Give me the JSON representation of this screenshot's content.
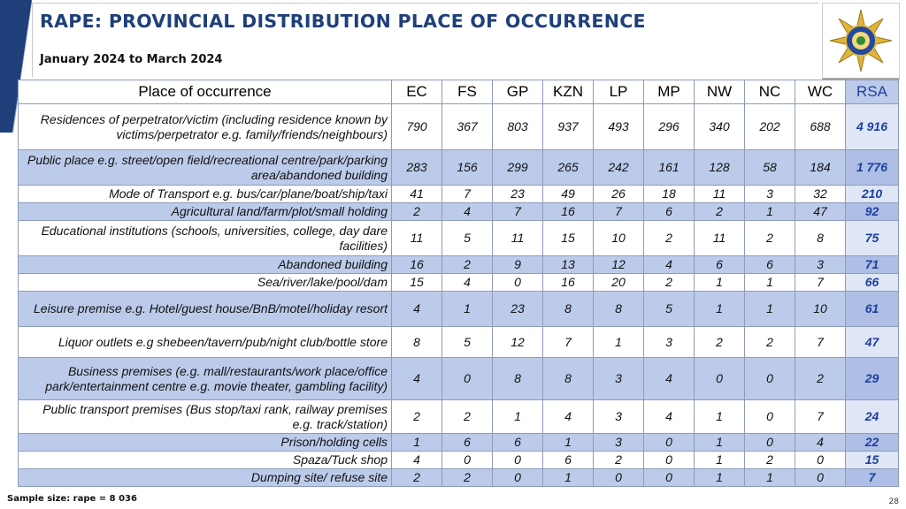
{
  "header": {
    "title": "RAPE: PROVINCIAL DISTRIBUTION PLACE OF OCCURRENCE",
    "subtitle": "January 2024 to March 2024"
  },
  "colors": {
    "accent": "#1f3f7a",
    "row_band": "#bccbea",
    "rsa_text": "#1f3fa0"
  },
  "logo": {
    "icon": "saps-star-emblem-icon"
  },
  "table": {
    "columns": [
      "Place of occurrence",
      "EC",
      "FS",
      "GP",
      "KZN",
      "LP",
      "MP",
      "NW",
      "NC",
      "WC",
      "RSA"
    ],
    "rows": [
      {
        "place": "Residences of perpetrator/victim (including residence known by victims/perpetrator e.g. family/friends/neighbours)",
        "values": [
          "790",
          "367",
          "803",
          "937",
          "493",
          "296",
          "340",
          "202",
          "688",
          "4 916"
        ]
      },
      {
        "place": "Public place e.g. street/open field/recreational centre/park/parking area/abandoned building",
        "values": [
          "283",
          "156",
          "299",
          "265",
          "242",
          "161",
          "128",
          "58",
          "184",
          "1 776"
        ]
      },
      {
        "place": "Mode of Transport e.g. bus/car/plane/boat/ship/taxi",
        "values": [
          "41",
          "7",
          "23",
          "49",
          "26",
          "18",
          "11",
          "3",
          "32",
          "210"
        ]
      },
      {
        "place": "Agricultural land/farm/plot/small holding",
        "values": [
          "2",
          "4",
          "7",
          "16",
          "7",
          "6",
          "2",
          "1",
          "47",
          "92"
        ]
      },
      {
        "place": "Educational institutions (schools, universities, college, day dare facilities)",
        "values": [
          "11",
          "5",
          "11",
          "15",
          "10",
          "2",
          "11",
          "2",
          "8",
          "75"
        ]
      },
      {
        "place": "Abandoned building",
        "values": [
          "16",
          "2",
          "9",
          "13",
          "12",
          "4",
          "6",
          "6",
          "3",
          "71"
        ]
      },
      {
        "place": "Sea/river/lake/pool/dam",
        "values": [
          "15",
          "4",
          "0",
          "16",
          "20",
          "2",
          "1",
          "1",
          "7",
          "66"
        ]
      },
      {
        "place": "Leisure premise e.g. Hotel/guest house/BnB/motel/holiday resort",
        "values": [
          "4",
          "1",
          "23",
          "8",
          "8",
          "5",
          "1",
          "1",
          "10",
          "61"
        ]
      },
      {
        "place": "Liquor outlets  e.g shebeen/tavern/pub/night club/bottle store",
        "values": [
          "8",
          "5",
          "12",
          "7",
          "1",
          "3",
          "2",
          "2",
          "7",
          "47"
        ]
      },
      {
        "place": "Business premises (e.g. mall/restaurants/work place/office park/entertainment centre e.g. movie theater, gambling facility)",
        "values": [
          "4",
          "0",
          "8",
          "8",
          "3",
          "4",
          "0",
          "0",
          "2",
          "29"
        ]
      },
      {
        "place": "Public transport premises (Bus stop/taxi rank, railway premises e.g. track/station)",
        "values": [
          "2",
          "2",
          "1",
          "4",
          "3",
          "4",
          "1",
          "0",
          "7",
          "24"
        ]
      },
      {
        "place": "Prison/holding cells",
        "values": [
          "1",
          "6",
          "6",
          "1",
          "3",
          "0",
          "1",
          "0",
          "4",
          "22"
        ]
      },
      {
        "place": "Spaza/Tuck shop",
        "values": [
          "4",
          "0",
          "0",
          "6",
          "2",
          "0",
          "1",
          "2",
          "0",
          "15"
        ]
      },
      {
        "place": "Dumping site/ refuse site",
        "values": [
          "2",
          "2",
          "0",
          "1",
          "0",
          "0",
          "1",
          "1",
          "0",
          "7"
        ]
      }
    ]
  },
  "footer": {
    "sample": "Sample size: rape = 8 036",
    "page": "28"
  }
}
